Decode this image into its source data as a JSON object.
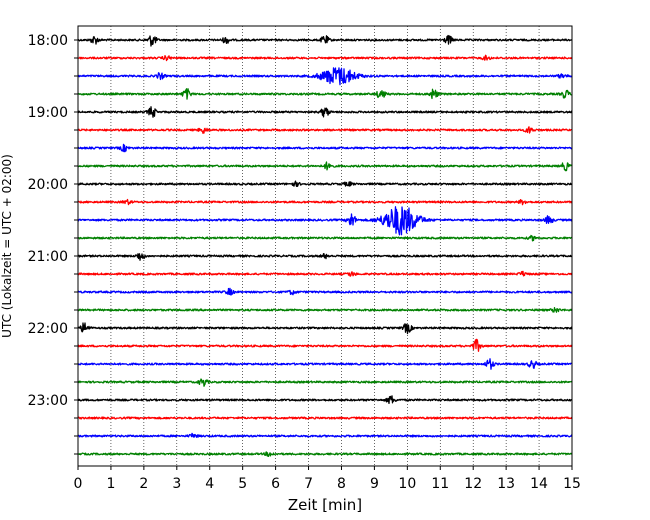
{
  "chart_data": {
    "type": "line",
    "xlabel": "Zeit  [min]",
    "ylabel": "UTC (Lokalzeit = UTC + 02:00)",
    "xlim": [
      0,
      15
    ],
    "x_ticks": [
      "0",
      "1",
      "2",
      "3",
      "4",
      "5",
      "6",
      "7",
      "8",
      "9",
      "10",
      "11",
      "12",
      "13",
      "14",
      "15"
    ],
    "y_tick_labels": [
      "18:00",
      "19:00",
      "20:00",
      "21:00",
      "22:00",
      "23:00"
    ],
    "y_tick_trace_index": [
      0,
      4,
      8,
      12,
      16,
      20
    ],
    "grid": "vertical dotted",
    "trace_colors": [
      "#000000",
      "#ff0000",
      "#0000ff",
      "#008000"
    ],
    "traces": [
      {
        "start": "18:00",
        "color": "#000000",
        "events": [
          [
            0.5,
            4
          ],
          [
            2.25,
            6
          ],
          [
            4.5,
            3
          ],
          [
            7.5,
            4
          ],
          [
            11.25,
            4
          ]
        ]
      },
      {
        "start": "18:15",
        "color": "#ff0000",
        "events": [
          [
            2.7,
            2
          ],
          [
            12.4,
            2
          ]
        ]
      },
      {
        "start": "18:30",
        "color": "#0000ff",
        "events": [
          [
            2.5,
            3
          ],
          [
            7.9,
            9
          ],
          [
            14.7,
            2
          ]
        ]
      },
      {
        "start": "18:45",
        "color": "#008000",
        "events": [
          [
            3.3,
            5
          ],
          [
            9.2,
            5
          ],
          [
            10.8,
            5
          ],
          [
            14.8,
            4
          ]
        ]
      },
      {
        "start": "19:00",
        "color": "#000000",
        "events": [
          [
            2.25,
            5
          ],
          [
            7.5,
            5
          ]
        ]
      },
      {
        "start": "19:15",
        "color": "#ff0000",
        "events": [
          [
            3.8,
            3
          ],
          [
            13.7,
            3
          ]
        ]
      },
      {
        "start": "19:30",
        "color": "#0000ff",
        "events": [
          [
            1.4,
            3
          ]
        ]
      },
      {
        "start": "19:45",
        "color": "#008000",
        "events": [
          [
            7.6,
            4
          ],
          [
            14.8,
            4
          ]
        ]
      },
      {
        "start": "20:00",
        "color": "#000000",
        "events": [
          [
            6.6,
            2
          ],
          [
            8.2,
            2
          ]
        ]
      },
      {
        "start": "20:15",
        "color": "#ff0000",
        "events": [
          [
            1.5,
            2
          ],
          [
            13.5,
            2
          ]
        ]
      },
      {
        "start": "20:30",
        "color": "#0000ff",
        "events": [
          [
            8.3,
            7
          ],
          [
            9.8,
            15
          ],
          [
            14.3,
            4
          ]
        ]
      },
      {
        "start": "20:45",
        "color": "#008000",
        "events": [
          [
            13.8,
            2
          ]
        ]
      },
      {
        "start": "21:00",
        "color": "#000000",
        "events": [
          [
            1.9,
            4
          ],
          [
            7.5,
            2
          ]
        ]
      },
      {
        "start": "21:15",
        "color": "#ff0000",
        "events": [
          [
            8.3,
            2
          ],
          [
            13.5,
            2
          ]
        ]
      },
      {
        "start": "21:30",
        "color": "#0000ff",
        "events": [
          [
            4.6,
            3
          ],
          [
            6.5,
            2
          ]
        ]
      },
      {
        "start": "21:45",
        "color": "#008000",
        "events": [
          [
            14.5,
            2
          ]
        ]
      },
      {
        "start": "22:00",
        "color": "#000000",
        "events": [
          [
            0.2,
            5
          ],
          [
            10.0,
            5
          ]
        ]
      },
      {
        "start": "22:15",
        "color": "#ff0000",
        "events": [
          [
            12.1,
            6
          ]
        ]
      },
      {
        "start": "22:30",
        "color": "#0000ff",
        "events": [
          [
            12.5,
            5
          ],
          [
            13.8,
            4
          ]
        ]
      },
      {
        "start": "22:45",
        "color": "#008000",
        "events": [
          [
            3.8,
            4
          ]
        ]
      },
      {
        "start": "23:00",
        "color": "#000000",
        "events": [
          [
            9.5,
            4
          ]
        ]
      },
      {
        "start": "23:15",
        "color": "#ff0000",
        "events": []
      },
      {
        "start": "23:30",
        "color": "#0000ff",
        "events": [
          [
            3.5,
            2
          ]
        ]
      },
      {
        "start": "23:45",
        "color": "#008000",
        "events": [
          [
            5.8,
            2
          ]
        ]
      }
    ]
  }
}
